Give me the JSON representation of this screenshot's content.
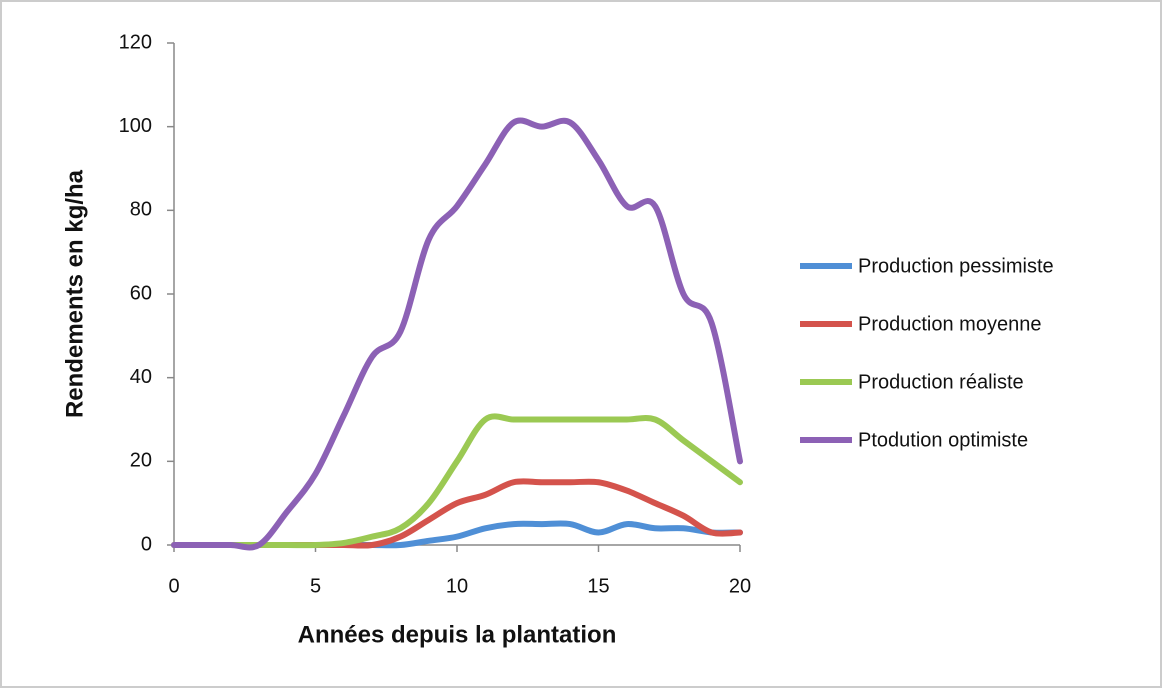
{
  "chart_data": {
    "type": "line",
    "x_label": "Années depuis la plantation",
    "y_label": "Rendements en kg/ha",
    "x": [
      0,
      1,
      2,
      3,
      4,
      5,
      6,
      7,
      8,
      9,
      10,
      11,
      12,
      13,
      14,
      15,
      16,
      17,
      18,
      19,
      20
    ],
    "xlim": [
      0,
      20
    ],
    "xticks": [
      0,
      5,
      10,
      15,
      20
    ],
    "ylim": [
      0,
      120
    ],
    "yticks": [
      0,
      20,
      40,
      60,
      80,
      100,
      120
    ],
    "grid": false,
    "legend": "right",
    "series": [
      {
        "name": "Production pessimiste",
        "color": "#4f8fd6",
        "values": [
          0,
          0,
          0,
          0,
          0,
          0,
          0,
          0,
          0,
          1,
          2,
          4,
          5,
          5,
          5,
          3,
          5,
          4,
          4,
          3,
          3
        ]
      },
      {
        "name": "Production moyenne",
        "color": "#d4534c",
        "values": [
          0,
          0,
          0,
          0,
          0,
          0,
          0,
          0,
          2,
          6,
          10,
          12,
          15,
          15,
          15,
          15,
          13,
          10,
          7,
          3,
          3
        ]
      },
      {
        "name": "Production réaliste",
        "color": "#9bc953",
        "values": [
          0,
          0,
          0,
          0,
          0,
          0,
          0.5,
          2,
          4,
          10,
          20,
          30,
          30,
          30,
          30,
          30,
          30,
          30,
          25,
          20,
          15
        ]
      },
      {
        "name": "Ptodution optimiste",
        "color": "#8c61b5",
        "values": [
          0,
          0,
          0,
          0,
          8,
          17,
          31,
          45,
          51,
          73,
          81,
          91,
          101,
          100,
          101,
          92,
          81,
          81,
          60,
          53,
          20
        ]
      }
    ]
  }
}
